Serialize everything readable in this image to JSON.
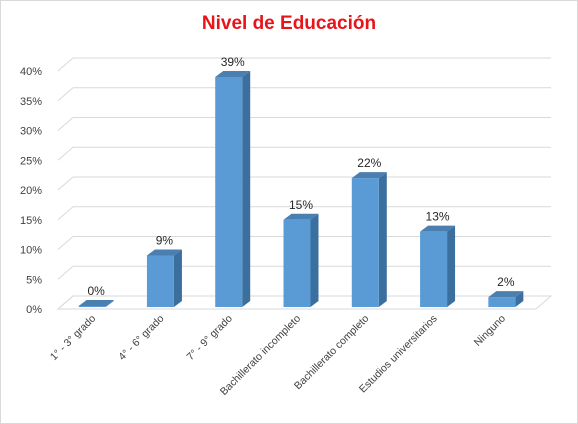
{
  "chart_data": {
    "type": "bar",
    "title": "Nivel de Educación",
    "categories": [
      "1° - 3° grado",
      "4° - 6° grado",
      "7° - 9° grado",
      "Bachillerato incompleto",
      "Bachillerato completo",
      "Estudios universitarios",
      "Ninguno"
    ],
    "values": [
      0,
      9,
      39,
      15,
      22,
      13,
      2
    ],
    "data_labels": [
      "0%",
      "9%",
      "39%",
      "15%",
      "22%",
      "13%",
      "2%"
    ],
    "yticks": [
      0,
      5,
      10,
      15,
      20,
      25,
      30,
      35,
      40
    ],
    "ytick_labels": [
      "0%",
      "5%",
      "10%",
      "15%",
      "20%",
      "25%",
      "30%",
      "35%",
      "40%"
    ],
    "ylim": [
      0,
      40
    ],
    "xlabel": "",
    "ylabel": "",
    "grid": true,
    "style": "3d-column",
    "colors": {
      "bar_front": "#5b9bd5",
      "bar_side": "#3a6f9e",
      "bar_top": "#4a7fb0",
      "title": "#e8141a",
      "grid": "#d9d9d9"
    }
  }
}
